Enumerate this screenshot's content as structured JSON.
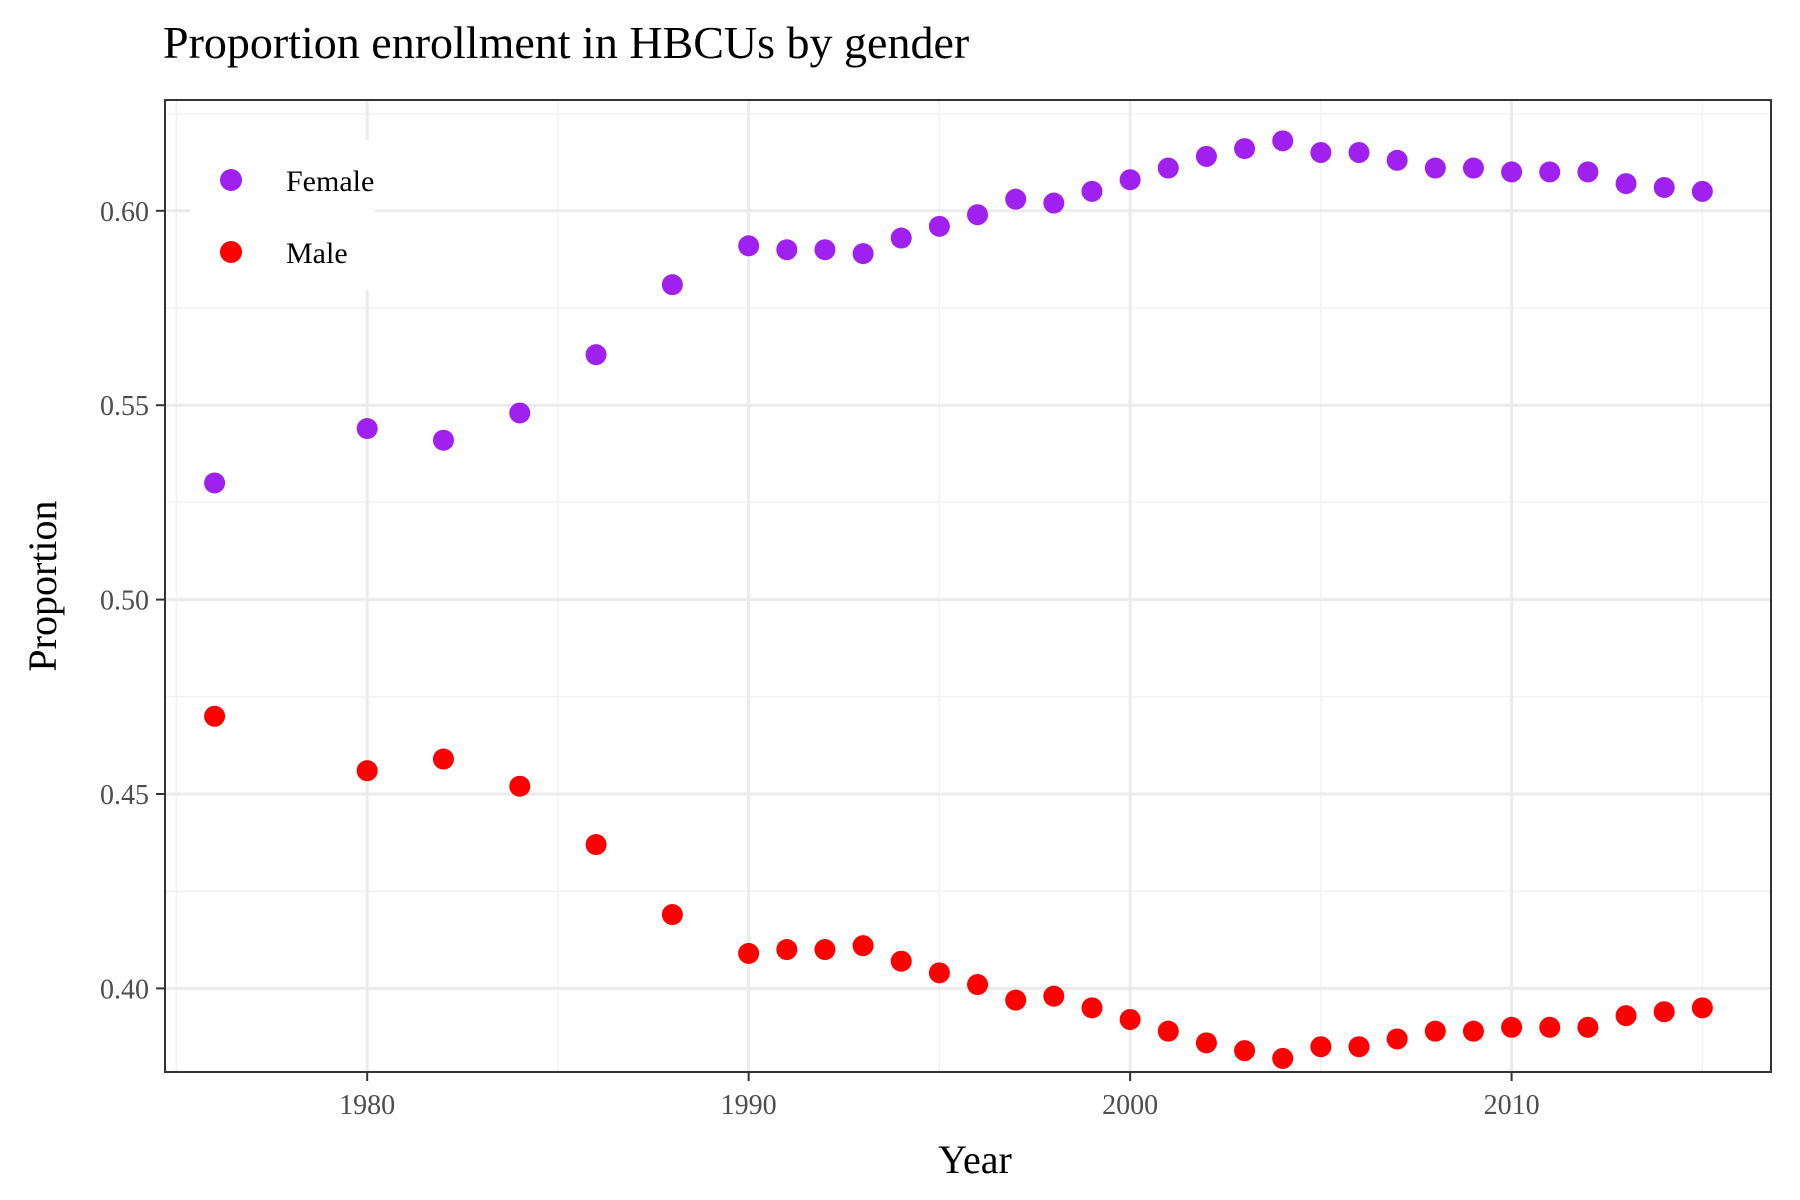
{
  "chart_data": {
    "type": "scatter",
    "title": "Proportion enrollment in HBCUs by gender",
    "xlabel": "Year",
    "ylabel": "Proportion",
    "xlim": [
      1974.7,
      2016.8
    ],
    "ylim": [
      0.3785,
      0.6285
    ],
    "x_ticks": [
      1980,
      1990,
      2000,
      2010
    ],
    "y_ticks": [
      0.4,
      0.45,
      0.5,
      0.55,
      0.6
    ],
    "x_tick_labels": [
      "1980",
      "1990",
      "2000",
      "2010"
    ],
    "y_tick_labels": [
      "0.40",
      "0.45",
      "0.50",
      "0.55",
      "0.60"
    ],
    "grid": true,
    "legend_position": "top-left",
    "series": [
      {
        "name": "Female",
        "color": "#a020f0",
        "x": [
          1976,
          1980,
          1982,
          1984,
          1986,
          1988,
          1990,
          1991,
          1992,
          1993,
          1994,
          1995,
          1996,
          1997,
          1998,
          1999,
          2000,
          2001,
          2002,
          2003,
          2004,
          2005,
          2006,
          2007,
          2008,
          2009,
          2010,
          2011,
          2012,
          2013,
          2014,
          2015
        ],
        "y": [
          0.53,
          0.544,
          0.541,
          0.548,
          0.563,
          0.581,
          0.591,
          0.59,
          0.59,
          0.589,
          0.593,
          0.596,
          0.599,
          0.603,
          0.602,
          0.605,
          0.608,
          0.611,
          0.614,
          0.616,
          0.618,
          0.615,
          0.615,
          0.613,
          0.611,
          0.611,
          0.61,
          0.61,
          0.61,
          0.607,
          0.606,
          0.605
        ]
      },
      {
        "name": "Male",
        "color": "#ff0000",
        "x": [
          1976,
          1980,
          1982,
          1984,
          1986,
          1988,
          1990,
          1991,
          1992,
          1993,
          1994,
          1995,
          1996,
          1997,
          1998,
          1999,
          2000,
          2001,
          2002,
          2003,
          2004,
          2005,
          2006,
          2007,
          2008,
          2009,
          2010,
          2011,
          2012,
          2013,
          2014,
          2015
        ],
        "y": [
          0.47,
          0.456,
          0.459,
          0.452,
          0.437,
          0.419,
          0.409,
          0.41,
          0.41,
          0.411,
          0.407,
          0.404,
          0.401,
          0.397,
          0.398,
          0.395,
          0.392,
          0.389,
          0.386,
          0.384,
          0.382,
          0.385,
          0.385,
          0.387,
          0.389,
          0.389,
          0.39,
          0.39,
          0.39,
          0.393,
          0.394,
          0.395
        ]
      }
    ]
  }
}
